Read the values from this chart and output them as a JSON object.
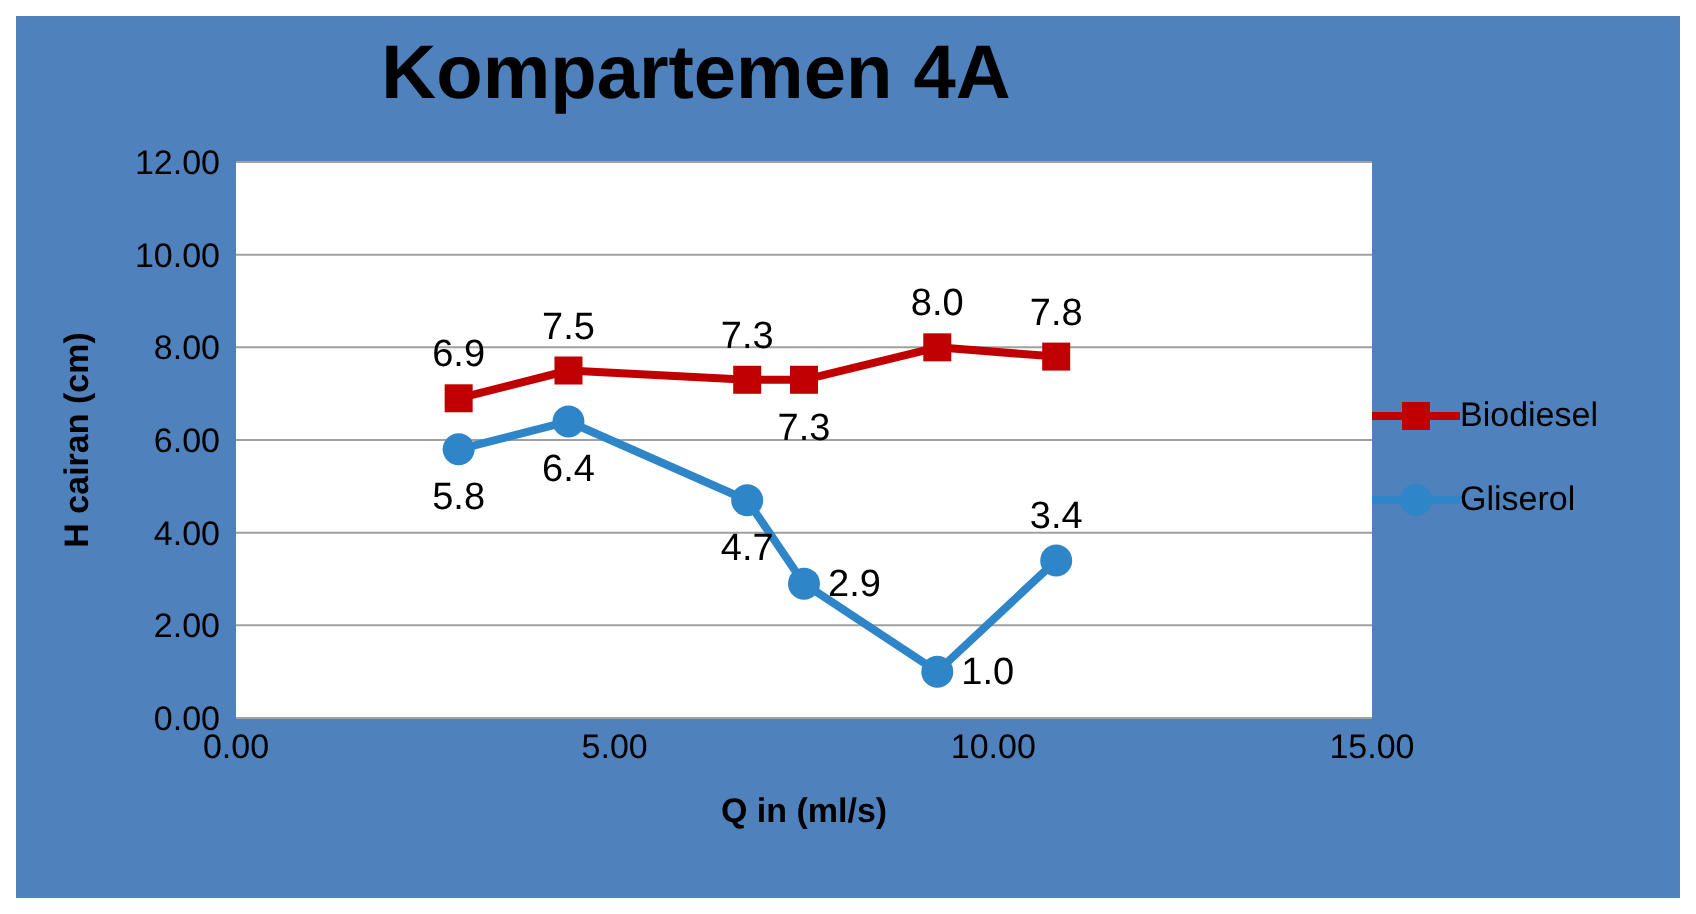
{
  "chart_data": {
    "type": "line",
    "title": "Kompartemen 4A",
    "xlabel": "Q in (ml/s)",
    "ylabel": "H cairan (cm)",
    "x": [
      2.94,
      4.39,
      6.75,
      7.5,
      9.26,
      10.83
    ],
    "series": [
      {
        "name": "Biodiesel",
        "color": "#c00000",
        "marker": "square",
        "values": [
          6.9,
          7.5,
          7.3,
          7.3,
          8.0,
          7.8
        ],
        "value_labels": [
          "6.9",
          "7.5",
          "7.3",
          "7.3",
          "8.0",
          "7.8"
        ]
      },
      {
        "name": "Gliserol",
        "color": "#2e86c8",
        "marker": "circle",
        "values": [
          5.8,
          6.4,
          4.7,
          2.9,
          1.0,
          3.4
        ],
        "value_labels": [
          "5.8",
          "6.4",
          "4.7",
          "2.9",
          "1.0",
          "3.4"
        ]
      }
    ],
    "xlim": [
      0,
      15
    ],
    "xticks": [
      {
        "value": 0,
        "label": "0.00"
      },
      {
        "value": 5,
        "label": "5.00"
      },
      {
        "value": 10,
        "label": "10.00"
      },
      {
        "value": 15,
        "label": "15.00"
      }
    ],
    "ylim": [
      0,
      12
    ],
    "yticks": [
      {
        "value": 0,
        "label": "0.00"
      },
      {
        "value": 2,
        "label": "2.00"
      },
      {
        "value": 4,
        "label": "4.00"
      },
      {
        "value": 6,
        "label": "6.00"
      },
      {
        "value": 8,
        "label": "8.00"
      },
      {
        "value": 10,
        "label": "10.00"
      },
      {
        "value": 12,
        "label": "12.00"
      }
    ],
    "grid": "y",
    "legend": "right",
    "line_style": "solid"
  }
}
